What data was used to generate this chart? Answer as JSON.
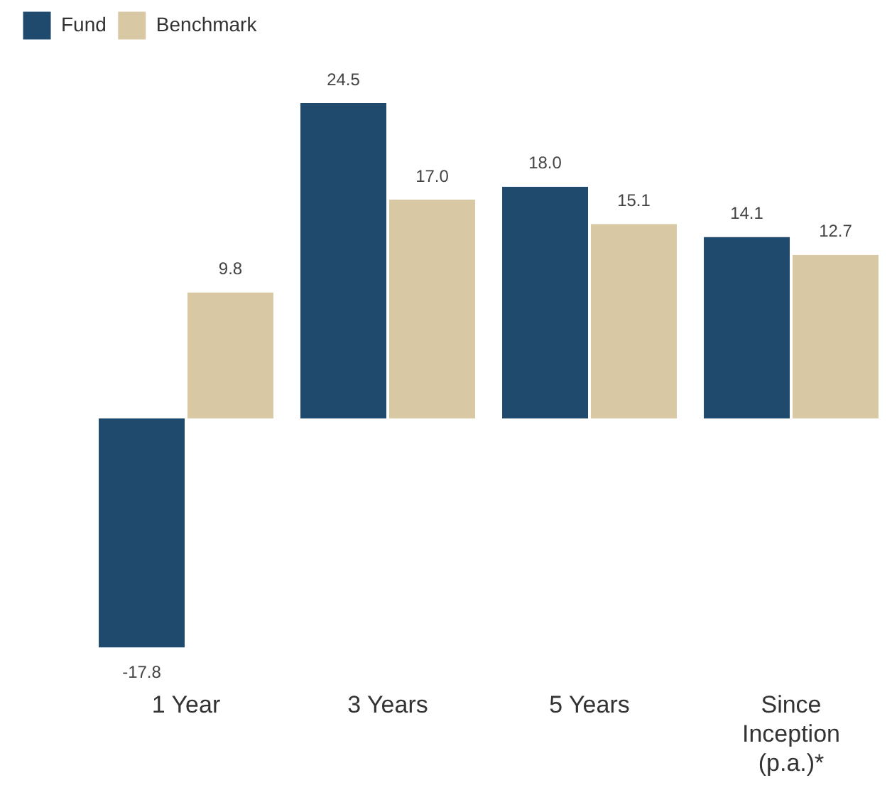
{
  "chart_data": {
    "type": "bar",
    "categories": [
      "1 Year",
      "3 Years",
      "5 Years",
      "Since Inception (p.a.)*"
    ],
    "series": [
      {
        "name": "Fund",
        "color": "#1f4a6e",
        "values": [
          -17.8,
          24.5,
          18.0,
          14.1
        ],
        "value_labels": [
          "-17.8",
          "24.5",
          "18.0",
          "14.1"
        ]
      },
      {
        "name": "Benchmark",
        "color": "#d8c8a4",
        "values": [
          9.8,
          17.0,
          15.1,
          12.7
        ],
        "value_labels": [
          "9.8",
          "17.0",
          "15.1",
          "12.7"
        ]
      }
    ],
    "legend": "top left",
    "grid": false
  }
}
